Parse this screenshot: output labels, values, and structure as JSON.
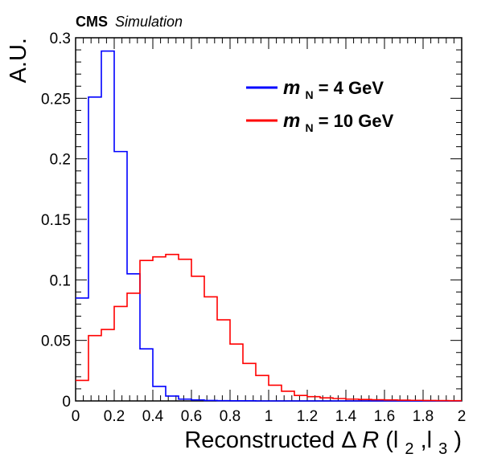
{
  "chart_data": {
    "type": "histogram",
    "title": "",
    "experiment_label": "CMS",
    "experiment_sublabel": "Simulation",
    "xlabel_prefix": "Reconstructed ",
    "xlabel_delta": "Δ",
    "xlabel_var": "R",
    "xlabel_open": "(l",
    "xlabel_sub1": "2",
    "xlabel_comma": ",l",
    "xlabel_sub2": "3",
    "xlabel_close": ")",
    "ylabel": "A.U.",
    "xlim": [
      0,
      2
    ],
    "ylim": [
      0,
      0.3
    ],
    "bin_width": 0.0667,
    "x_ticks": [
      "0",
      "0.2",
      "0.4",
      "0.6",
      "0.8",
      "1",
      "1.2",
      "1.4",
      "1.6",
      "1.8",
      "2"
    ],
    "y_ticks": [
      "0",
      "0.05",
      "0.1",
      "0.15",
      "0.2",
      "0.25",
      "0.3"
    ],
    "grid": false,
    "legend_position": "top-right",
    "series": [
      {
        "name_symbol": "m",
        "name_subscript": "N",
        "name_value": " = 4 GeV",
        "color": "#0000ff",
        "values": [
          0.085,
          0.251,
          0.289,
          0.206,
          0.105,
          0.043,
          0.012,
          0.004,
          0.0015,
          0.0008,
          0.0004,
          0.0002,
          0.0001,
          0.0001,
          0,
          0,
          0,
          0,
          0,
          0,
          0,
          0,
          0,
          0,
          0,
          0,
          0,
          0,
          0,
          0
        ]
      },
      {
        "name_symbol": "m",
        "name_subscript": "N",
        "name_value": " = 10 GeV",
        "color": "#ff0000",
        "values": [
          0.017,
          0.054,
          0.059,
          0.078,
          0.089,
          0.116,
          0.119,
          0.121,
          0.117,
          0.103,
          0.086,
          0.067,
          0.047,
          0.031,
          0.021,
          0.013,
          0.008,
          0.0045,
          0.0035,
          0.0025,
          0.002,
          0.0015,
          0.0012,
          0.001,
          0.0008,
          0.0006,
          0.0005,
          0.0004,
          0.0003,
          0.0002
        ]
      }
    ]
  }
}
